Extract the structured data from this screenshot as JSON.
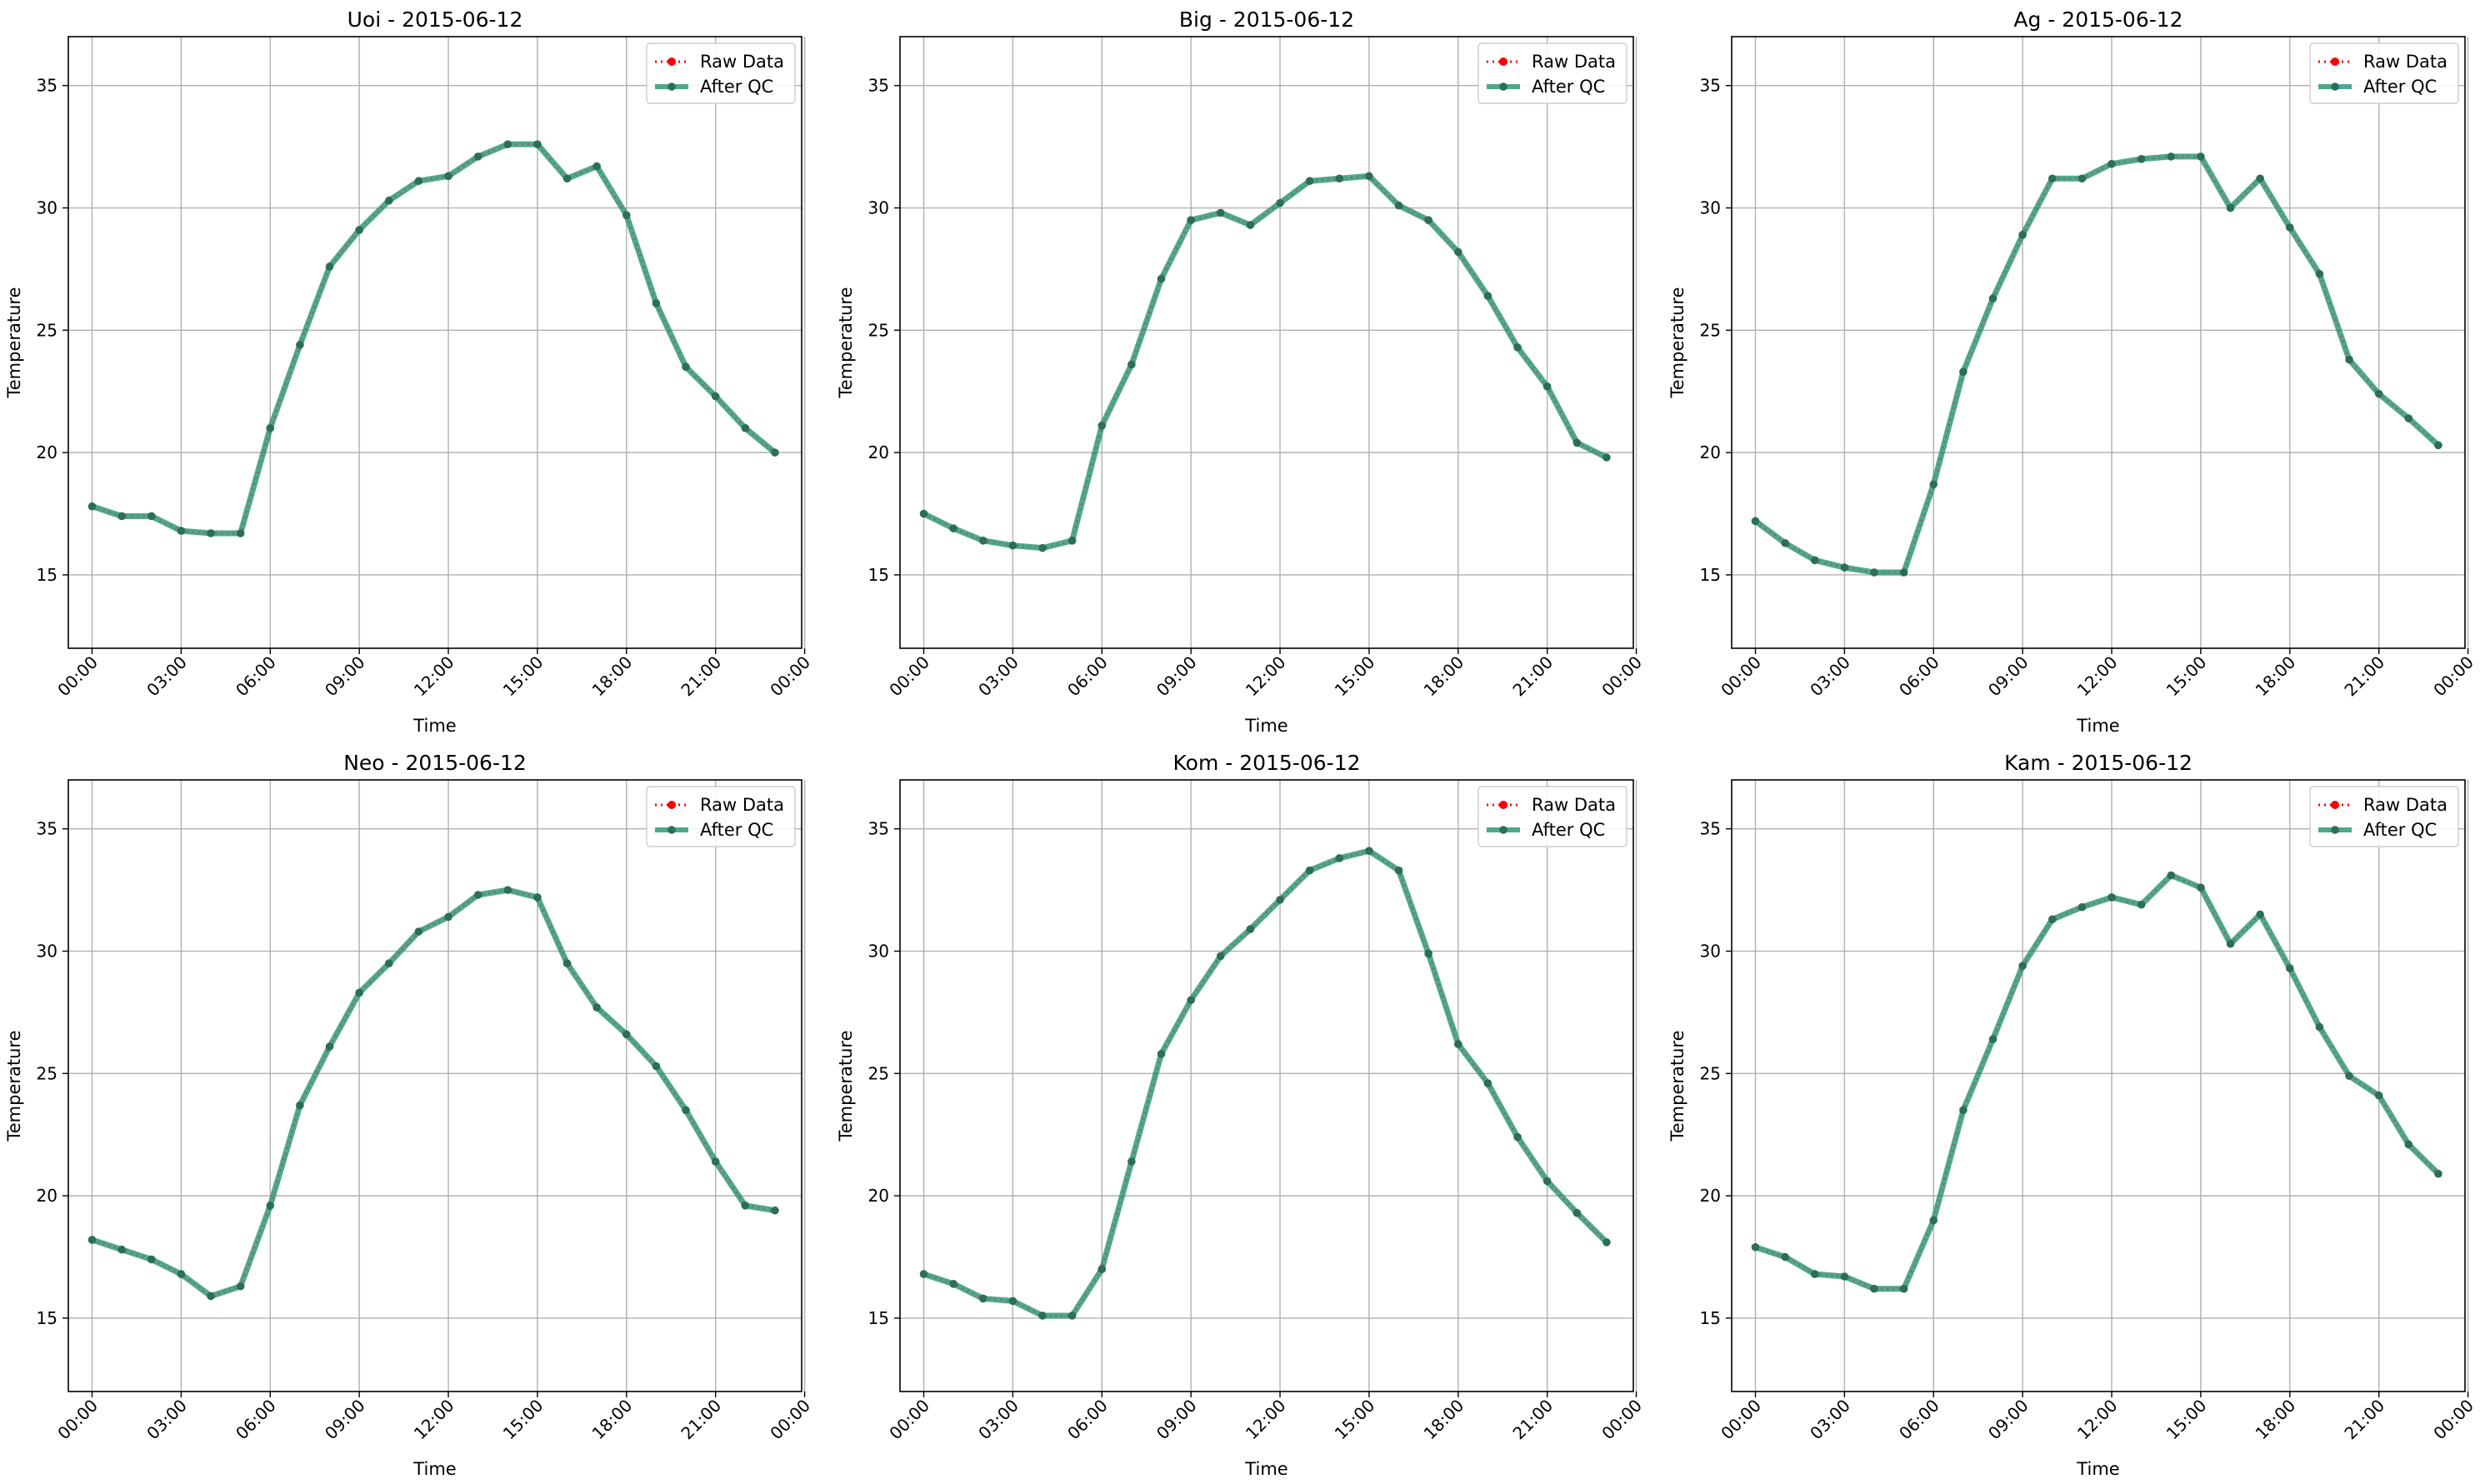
{
  "figure": {
    "xlabel": "Time",
    "ylabel": "Temperature",
    "legend": {
      "raw_label": "Raw Data",
      "qc_label": "After QC",
      "placement": "top-right"
    },
    "colors": {
      "raw": "#ff0000",
      "qc": "#2e9a7a",
      "qc_marker": "#2c6e57",
      "grid": "#b0b0b0",
      "axes": "#000000"
    }
  },
  "chart_data": [
    {
      "type": "line",
      "title": "Uoi - 2015-06-12",
      "xlabel": "Time",
      "ylabel": "Temperature",
      "x": [
        "00:00",
        "01:00",
        "02:00",
        "03:00",
        "04:00",
        "05:00",
        "06:00",
        "07:00",
        "08:00",
        "09:00",
        "10:00",
        "11:00",
        "12:00",
        "13:00",
        "14:00",
        "15:00",
        "16:00",
        "17:00",
        "18:00",
        "19:00",
        "20:00",
        "21:00",
        "22:00",
        "23:00"
      ],
      "x_ticks": [
        "00:00",
        "03:00",
        "06:00",
        "09:00",
        "12:00",
        "15:00",
        "18:00",
        "21:00",
        "00:00"
      ],
      "ylim": [
        12,
        37
      ],
      "y_ticks": [
        15,
        20,
        25,
        30,
        35
      ],
      "grid": true,
      "legend_placement": "top-right",
      "series": [
        {
          "name": "Raw Data",
          "values": [
            17.8,
            17.4,
            17.4,
            16.8,
            16.7,
            16.7,
            21.0,
            24.4,
            27.6,
            29.1,
            30.3,
            31.1,
            31.3,
            32.1,
            32.6,
            32.6,
            31.2,
            31.7,
            29.7,
            26.1,
            23.5,
            22.3,
            21.0,
            20.0
          ]
        },
        {
          "name": "After QC",
          "values": [
            17.8,
            17.4,
            17.4,
            16.8,
            16.7,
            16.7,
            21.0,
            24.4,
            27.6,
            29.1,
            30.3,
            31.1,
            31.3,
            32.1,
            32.6,
            32.6,
            31.2,
            31.7,
            29.7,
            26.1,
            23.5,
            22.3,
            21.0,
            20.0
          ]
        }
      ]
    },
    {
      "type": "line",
      "title": "Big - 2015-06-12",
      "xlabel": "Time",
      "ylabel": "Temperature",
      "x": [
        "00:00",
        "01:00",
        "02:00",
        "03:00",
        "04:00",
        "05:00",
        "06:00",
        "07:00",
        "08:00",
        "09:00",
        "10:00",
        "11:00",
        "12:00",
        "13:00",
        "14:00",
        "15:00",
        "16:00",
        "17:00",
        "18:00",
        "19:00",
        "20:00",
        "21:00",
        "22:00",
        "23:00"
      ],
      "x_ticks": [
        "00:00",
        "03:00",
        "06:00",
        "09:00",
        "12:00",
        "15:00",
        "18:00",
        "21:00",
        "00:00"
      ],
      "ylim": [
        12,
        37
      ],
      "y_ticks": [
        15,
        20,
        25,
        30,
        35
      ],
      "grid": true,
      "legend_placement": "top-right",
      "series": [
        {
          "name": "Raw Data",
          "values": [
            17.5,
            16.9,
            16.4,
            16.2,
            16.1,
            16.4,
            21.1,
            23.6,
            27.1,
            29.5,
            29.8,
            29.3,
            30.2,
            31.1,
            31.2,
            31.3,
            30.1,
            29.5,
            28.2,
            26.4,
            24.3,
            22.7,
            20.4,
            19.8
          ]
        },
        {
          "name": "After QC",
          "values": [
            17.5,
            16.9,
            16.4,
            16.2,
            16.1,
            16.4,
            21.1,
            23.6,
            27.1,
            29.5,
            29.8,
            29.3,
            30.2,
            31.1,
            31.2,
            31.3,
            30.1,
            29.5,
            28.2,
            26.4,
            24.3,
            22.7,
            20.4,
            19.8
          ]
        }
      ]
    },
    {
      "type": "line",
      "title": "Ag - 2015-06-12",
      "xlabel": "Time",
      "ylabel": "Temperature",
      "x": [
        "00:00",
        "01:00",
        "02:00",
        "03:00",
        "04:00",
        "05:00",
        "06:00",
        "07:00",
        "08:00",
        "09:00",
        "10:00",
        "11:00",
        "12:00",
        "13:00",
        "14:00",
        "15:00",
        "16:00",
        "17:00",
        "18:00",
        "19:00",
        "20:00",
        "21:00",
        "22:00",
        "23:00"
      ],
      "x_ticks": [
        "00:00",
        "03:00",
        "06:00",
        "09:00",
        "12:00",
        "15:00",
        "18:00",
        "21:00",
        "00:00"
      ],
      "ylim": [
        12,
        37
      ],
      "y_ticks": [
        15,
        20,
        25,
        30,
        35
      ],
      "grid": true,
      "legend_placement": "top-right",
      "series": [
        {
          "name": "Raw Data",
          "values": [
            17.2,
            16.3,
            15.6,
            15.3,
            15.1,
            15.1,
            18.7,
            23.3,
            26.3,
            28.9,
            31.2,
            31.2,
            31.8,
            32.0,
            32.1,
            32.1,
            30.0,
            31.2,
            29.2,
            27.3,
            23.8,
            22.4,
            21.4,
            20.3
          ]
        },
        {
          "name": "After QC",
          "values": [
            17.2,
            16.3,
            15.6,
            15.3,
            15.1,
            15.1,
            18.7,
            23.3,
            26.3,
            28.9,
            31.2,
            31.2,
            31.8,
            32.0,
            32.1,
            32.1,
            30.0,
            31.2,
            29.2,
            27.3,
            23.8,
            22.4,
            21.4,
            20.3
          ]
        }
      ]
    },
    {
      "type": "line",
      "title": "Neo - 2015-06-12",
      "xlabel": "Time",
      "ylabel": "Temperature",
      "x": [
        "00:00",
        "01:00",
        "02:00",
        "03:00",
        "04:00",
        "05:00",
        "06:00",
        "07:00",
        "08:00",
        "09:00",
        "10:00",
        "11:00",
        "12:00",
        "13:00",
        "14:00",
        "15:00",
        "16:00",
        "17:00",
        "18:00",
        "19:00",
        "20:00",
        "21:00",
        "22:00",
        "23:00"
      ],
      "x_ticks": [
        "00:00",
        "03:00",
        "06:00",
        "09:00",
        "12:00",
        "15:00",
        "18:00",
        "21:00",
        "00:00"
      ],
      "ylim": [
        12,
        37
      ],
      "y_ticks": [
        15,
        20,
        25,
        30,
        35
      ],
      "grid": true,
      "legend_placement": "top-right",
      "series": [
        {
          "name": "Raw Data",
          "values": [
            18.2,
            17.8,
            17.4,
            16.8,
            15.9,
            16.3,
            19.6,
            23.7,
            26.1,
            28.3,
            29.5,
            30.8,
            31.4,
            32.3,
            32.5,
            32.2,
            29.5,
            27.7,
            26.6,
            25.3,
            23.5,
            21.4,
            19.6,
            19.4
          ]
        },
        {
          "name": "After QC",
          "values": [
            18.2,
            17.8,
            17.4,
            16.8,
            15.9,
            16.3,
            19.6,
            23.7,
            26.1,
            28.3,
            29.5,
            30.8,
            31.4,
            32.3,
            32.5,
            32.2,
            29.5,
            27.7,
            26.6,
            25.3,
            23.5,
            21.4,
            19.6,
            19.4
          ]
        }
      ]
    },
    {
      "type": "line",
      "title": "Kom - 2015-06-12",
      "xlabel": "Time",
      "ylabel": "Temperature",
      "x": [
        "00:00",
        "01:00",
        "02:00",
        "03:00",
        "04:00",
        "05:00",
        "06:00",
        "07:00",
        "08:00",
        "09:00",
        "10:00",
        "11:00",
        "12:00",
        "13:00",
        "14:00",
        "15:00",
        "16:00",
        "17:00",
        "18:00",
        "19:00",
        "20:00",
        "21:00",
        "22:00",
        "23:00"
      ],
      "x_ticks": [
        "00:00",
        "03:00",
        "06:00",
        "09:00",
        "12:00",
        "15:00",
        "18:00",
        "21:00",
        "00:00"
      ],
      "ylim": [
        12,
        37
      ],
      "y_ticks": [
        15,
        20,
        25,
        30,
        35
      ],
      "grid": true,
      "legend_placement": "top-right",
      "series": [
        {
          "name": "Raw Data",
          "values": [
            16.8,
            16.4,
            15.8,
            15.7,
            15.1,
            15.1,
            17.0,
            21.4,
            25.8,
            28.0,
            29.8,
            30.9,
            32.1,
            33.3,
            33.8,
            34.1,
            33.3,
            29.9,
            26.2,
            24.6,
            22.4,
            20.6,
            19.3,
            18.1
          ]
        },
        {
          "name": "After QC",
          "values": [
            16.8,
            16.4,
            15.8,
            15.7,
            15.1,
            15.1,
            17.0,
            21.4,
            25.8,
            28.0,
            29.8,
            30.9,
            32.1,
            33.3,
            33.8,
            34.1,
            33.3,
            29.9,
            26.2,
            24.6,
            22.4,
            20.6,
            19.3,
            18.1
          ]
        }
      ]
    },
    {
      "type": "line",
      "title": "Kam - 2015-06-12",
      "xlabel": "Time",
      "ylabel": "Temperature",
      "x": [
        "00:00",
        "01:00",
        "02:00",
        "03:00",
        "04:00",
        "05:00",
        "06:00",
        "07:00",
        "08:00",
        "09:00",
        "10:00",
        "11:00",
        "12:00",
        "13:00",
        "14:00",
        "15:00",
        "16:00",
        "17:00",
        "18:00",
        "19:00",
        "20:00",
        "21:00",
        "22:00",
        "23:00"
      ],
      "x_ticks": [
        "00:00",
        "03:00",
        "06:00",
        "09:00",
        "12:00",
        "15:00",
        "18:00",
        "21:00",
        "00:00"
      ],
      "ylim": [
        12,
        37
      ],
      "y_ticks": [
        15,
        20,
        25,
        30,
        35
      ],
      "grid": true,
      "legend_placement": "top-right",
      "series": [
        {
          "name": "Raw Data",
          "values": [
            17.9,
            17.5,
            16.8,
            16.7,
            16.2,
            16.2,
            19.0,
            23.5,
            26.4,
            29.4,
            31.3,
            31.8,
            32.2,
            31.9,
            33.1,
            32.6,
            30.3,
            31.5,
            29.3,
            26.9,
            24.9,
            24.1,
            22.1,
            20.9
          ]
        },
        {
          "name": "After QC",
          "values": [
            17.9,
            17.5,
            16.8,
            16.7,
            16.2,
            16.2,
            19.0,
            23.5,
            26.4,
            29.4,
            31.3,
            31.8,
            32.2,
            31.9,
            33.1,
            32.6,
            30.3,
            31.5,
            29.3,
            26.9,
            24.9,
            24.1,
            22.1,
            20.9
          ]
        }
      ]
    }
  ]
}
